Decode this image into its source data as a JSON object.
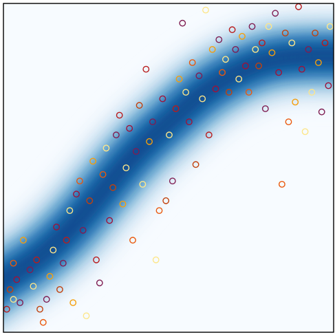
{
  "chart_data": {
    "type": "scatter",
    "title": "",
    "xlabel": "",
    "ylabel": "",
    "xlim": [
      0,
      1
    ],
    "ylim": [
      0,
      1
    ],
    "grid": false,
    "ticks": false,
    "background": {
      "type": "density-band",
      "colormap": "Blues",
      "centerline": [
        [
          0.0,
          0.16
        ],
        [
          0.1,
          0.22
        ],
        [
          0.2,
          0.31
        ],
        [
          0.3,
          0.43
        ],
        [
          0.4,
          0.55
        ],
        [
          0.5,
          0.64
        ],
        [
          0.6,
          0.73
        ],
        [
          0.7,
          0.79
        ],
        [
          0.8,
          0.83
        ],
        [
          0.9,
          0.84
        ],
        [
          1.0,
          0.84
        ]
      ],
      "band_width": 0.085
    },
    "colors": [
      "#fde68a",
      "#f59e0b",
      "#ea580c",
      "#c2410c",
      "#b91c1c",
      "#9f1239",
      "#7f1d52",
      "#4c1d95"
    ],
    "points": [
      {
        "x": 0.01,
        "y": 0.07,
        "c": 4
      },
      {
        "x": 0.03,
        "y": 0.1,
        "c": 0
      },
      {
        "x": 0.02,
        "y": 0.13,
        "c": 3
      },
      {
        "x": 0.05,
        "y": 0.09,
        "c": 6
      },
      {
        "x": 0.04,
        "y": 0.16,
        "c": 5
      },
      {
        "x": 0.03,
        "y": 0.21,
        "c": 2
      },
      {
        "x": 0.06,
        "y": 0.28,
        "c": 1
      },
      {
        "x": 0.08,
        "y": 0.19,
        "c": 6
      },
      {
        "x": 0.09,
        "y": 0.14,
        "c": 0
      },
      {
        "x": 0.1,
        "y": 0.22,
        "c": 4
      },
      {
        "x": 0.11,
        "y": 0.07,
        "c": 3
      },
      {
        "x": 0.12,
        "y": 0.03,
        "c": 2
      },
      {
        "x": 0.13,
        "y": 0.1,
        "c": 6
      },
      {
        "x": 0.14,
        "y": 0.17,
        "c": 1
      },
      {
        "x": 0.15,
        "y": 0.25,
        "c": 0
      },
      {
        "x": 0.16,
        "y": 0.32,
        "c": 5
      },
      {
        "x": 0.17,
        "y": 0.13,
        "c": 3
      },
      {
        "x": 0.18,
        "y": 0.21,
        "c": 6
      },
      {
        "x": 0.19,
        "y": 0.28,
        "c": 4
      },
      {
        "x": 0.2,
        "y": 0.37,
        "c": 0
      },
      {
        "x": 0.21,
        "y": 0.09,
        "c": 1
      },
      {
        "x": 0.22,
        "y": 0.42,
        "c": 5
      },
      {
        "x": 0.23,
        "y": 0.46,
        "c": 2
      },
      {
        "x": 0.24,
        "y": 0.31,
        "c": 6
      },
      {
        "x": 0.25,
        "y": 0.05,
        "c": 0
      },
      {
        "x": 0.26,
        "y": 0.4,
        "c": 3
      },
      {
        "x": 0.27,
        "y": 0.52,
        "c": 1
      },
      {
        "x": 0.28,
        "y": 0.22,
        "c": 4
      },
      {
        "x": 0.29,
        "y": 0.15,
        "c": 6
      },
      {
        "x": 0.3,
        "y": 0.48,
        "c": 2
      },
      {
        "x": 0.31,
        "y": 0.56,
        "c": 0
      },
      {
        "x": 0.32,
        "y": 0.34,
        "c": 5
      },
      {
        "x": 0.33,
        "y": 0.44,
        "c": 3
      },
      {
        "x": 0.34,
        "y": 0.6,
        "c": 6
      },
      {
        "x": 0.35,
        "y": 0.66,
        "c": 4
      },
      {
        "x": 0.36,
        "y": 0.39,
        "c": 1
      },
      {
        "x": 0.37,
        "y": 0.5,
        "c": 0
      },
      {
        "x": 0.38,
        "y": 0.62,
        "c": 5
      },
      {
        "x": 0.39,
        "y": 0.28,
        "c": 2
      },
      {
        "x": 0.4,
        "y": 0.55,
        "c": 6
      },
      {
        "x": 0.41,
        "y": 0.69,
        "c": 3
      },
      {
        "x": 0.42,
        "y": 0.45,
        "c": 0
      },
      {
        "x": 0.43,
        "y": 0.8,
        "c": 4
      },
      {
        "x": 0.44,
        "y": 0.58,
        "c": 1
      },
      {
        "x": 0.45,
        "y": 0.64,
        "c": 6
      },
      {
        "x": 0.46,
        "y": 0.22,
        "c": 0
      },
      {
        "x": 0.47,
        "y": 0.37,
        "c": 2
      },
      {
        "x": 0.48,
        "y": 0.71,
        "c": 5
      },
      {
        "x": 0.49,
        "y": 0.4,
        "c": 3
      },
      {
        "x": 0.5,
        "y": 0.6,
        "c": 0
      },
      {
        "x": 0.51,
        "y": 0.46,
        "c": 6
      },
      {
        "x": 0.52,
        "y": 0.68,
        "c": 4
      },
      {
        "x": 0.53,
        "y": 0.77,
        "c": 1
      },
      {
        "x": 0.54,
        "y": 0.94,
        "c": 6
      },
      {
        "x": 0.55,
        "y": 0.73,
        "c": 0
      },
      {
        "x": 0.56,
        "y": 0.64,
        "c": 5
      },
      {
        "x": 0.57,
        "y": 0.82,
        "c": 2
      },
      {
        "x": 0.58,
        "y": 0.51,
        "c": 3
      },
      {
        "x": 0.59,
        "y": 0.78,
        "c": 6
      },
      {
        "x": 0.6,
        "y": 0.71,
        "c": 0
      },
      {
        "x": 0.61,
        "y": 0.98,
        "c": 0
      },
      {
        "x": 0.62,
        "y": 0.6,
        "c": 4
      },
      {
        "x": 0.63,
        "y": 0.86,
        "c": 1
      },
      {
        "x": 0.64,
        "y": 0.74,
        "c": 5
      },
      {
        "x": 0.65,
        "y": 0.89,
        "c": 6
      },
      {
        "x": 0.66,
        "y": 0.79,
        "c": 2
      },
      {
        "x": 0.67,
        "y": 0.83,
        "c": 0
      },
      {
        "x": 0.68,
        "y": 0.73,
        "c": 3
      },
      {
        "x": 0.69,
        "y": 0.92,
        "c": 4
      },
      {
        "x": 0.7,
        "y": 0.86,
        "c": 6
      },
      {
        "x": 0.71,
        "y": 0.77,
        "c": 0
      },
      {
        "x": 0.72,
        "y": 0.9,
        "c": 1
      },
      {
        "x": 0.73,
        "y": 0.81,
        "c": 5
      },
      {
        "x": 0.74,
        "y": 0.73,
        "c": 2
      },
      {
        "x": 0.75,
        "y": 0.93,
        "c": 6
      },
      {
        "x": 0.76,
        "y": 0.86,
        "c": 0
      },
      {
        "x": 0.77,
        "y": 0.81,
        "c": 3
      },
      {
        "x": 0.78,
        "y": 0.88,
        "c": 4
      },
      {
        "x": 0.79,
        "y": 0.68,
        "c": 6
      },
      {
        "x": 0.8,
        "y": 0.93,
        "c": 0
      },
      {
        "x": 0.81,
        "y": 0.85,
        "c": 1
      },
      {
        "x": 0.82,
        "y": 0.97,
        "c": 6
      },
      {
        "x": 0.83,
        "y": 0.79,
        "c": 5
      },
      {
        "x": 0.84,
        "y": 0.45,
        "c": 2
      },
      {
        "x": 0.85,
        "y": 0.91,
        "c": 3
      },
      {
        "x": 0.86,
        "y": 0.64,
        "c": 2
      },
      {
        "x": 0.87,
        "y": 0.88,
        "c": 0
      },
      {
        "x": 0.88,
        "y": 0.7,
        "c": 1
      },
      {
        "x": 0.89,
        "y": 0.99,
        "c": 4
      },
      {
        "x": 0.9,
        "y": 0.8,
        "c": 5
      },
      {
        "x": 0.91,
        "y": 0.61,
        "c": 0
      },
      {
        "x": 0.92,
        "y": 0.86,
        "c": 6
      },
      {
        "x": 0.93,
        "y": 0.73,
        "c": 0
      },
      {
        "x": 0.94,
        "y": 0.91,
        "c": 3
      },
      {
        "x": 0.95,
        "y": 0.82,
        "c": 1
      },
      {
        "x": 0.96,
        "y": 0.67,
        "c": 6
      },
      {
        "x": 0.97,
        "y": 0.88,
        "c": 4
      },
      {
        "x": 0.98,
        "y": 0.75,
        "c": 5
      },
      {
        "x": 0.985,
        "y": 0.93,
        "c": 0
      }
    ]
  }
}
